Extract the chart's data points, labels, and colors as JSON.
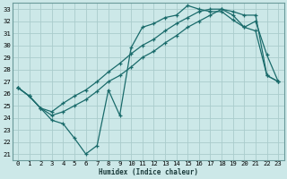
{
  "xlabel": "Humidex (Indice chaleur)",
  "ylabel": "",
  "bg_color": "#cce8e8",
  "grid_color": "#aacccc",
  "line_color": "#1a6b6b",
  "xlim": [
    -0.5,
    23.5
  ],
  "ylim": [
    20.5,
    33.5
  ],
  "xticks": [
    0,
    1,
    2,
    3,
    4,
    5,
    6,
    7,
    8,
    9,
    10,
    11,
    12,
    13,
    14,
    15,
    16,
    17,
    18,
    19,
    20,
    21,
    22,
    23
  ],
  "yticks": [
    21,
    22,
    23,
    24,
    25,
    26,
    27,
    28,
    29,
    30,
    31,
    32,
    33
  ],
  "line1_y": [
    26.5,
    25.8,
    24.8,
    23.8,
    23.5,
    22.3,
    21.0,
    21.7,
    26.3,
    24.2,
    29.8,
    31.5,
    31.8,
    32.3,
    32.5,
    33.3,
    33.0,
    32.8,
    32.8,
    32.1,
    31.5,
    32.0,
    29.2,
    27.0
  ],
  "line2_y": [
    26.5,
    25.8,
    24.8,
    24.5,
    25.2,
    25.8,
    26.3,
    27.0,
    27.8,
    28.5,
    29.3,
    30.0,
    30.5,
    31.2,
    31.8,
    32.3,
    32.8,
    33.0,
    33.0,
    32.5,
    31.5,
    31.2,
    27.5,
    27.0
  ],
  "line3_y": [
    26.5,
    25.8,
    24.8,
    24.2,
    24.5,
    25.0,
    25.5,
    26.2,
    27.0,
    27.5,
    28.2,
    29.0,
    29.5,
    30.2,
    30.8,
    31.5,
    32.0,
    32.5,
    33.0,
    32.8,
    32.5,
    32.5,
    27.5,
    27.0
  ]
}
